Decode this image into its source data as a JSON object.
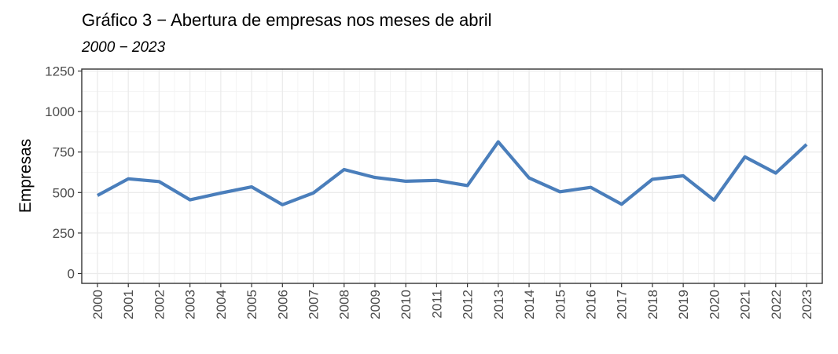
{
  "chart_data": {
    "type": "line",
    "title": "Gráfico 3 − Abertura de empresas nos meses de abril",
    "subtitle": "2000 − 2023",
    "xlabel": "",
    "ylabel": "Empresas",
    "ylim": [
      0,
      1250
    ],
    "yticks": [
      "0",
      "250",
      "500",
      "750",
      "1000",
      "1250"
    ],
    "grid": true,
    "x": [
      "2000",
      "2001",
      "2002",
      "2003",
      "2004",
      "2005",
      "2006",
      "2007",
      "2008",
      "2009",
      "2010",
      "2011",
      "2012",
      "2013",
      "2014",
      "2015",
      "2016",
      "2017",
      "2018",
      "2019",
      "2020",
      "2021",
      "2022",
      "2023"
    ],
    "series": [
      {
        "values": [
          482,
          585,
          568,
          455,
          497,
          535,
          425,
          497,
          642,
          593,
          570,
          575,
          543,
          813,
          590,
          505,
          532,
          428,
          582,
          603,
          453,
          720,
          620,
          797
        ],
        "color": "#4a7ebb"
      }
    ]
  }
}
